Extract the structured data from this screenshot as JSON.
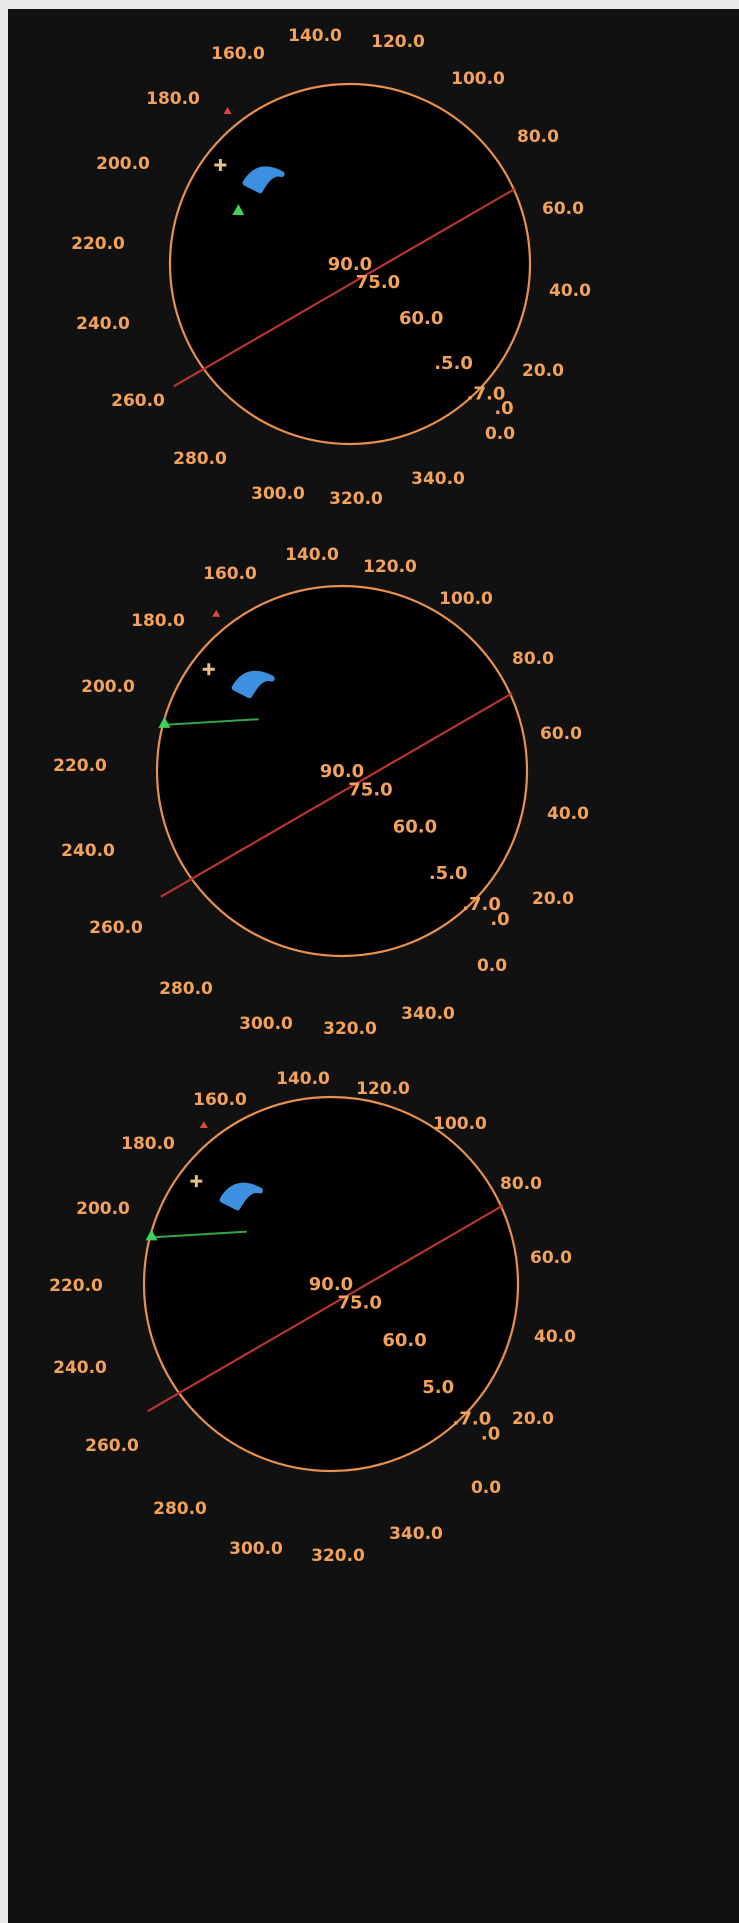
{
  "colors": {
    "background": "#111111",
    "grid": "#e8914f",
    "label": "#f2a25a",
    "sky_glow": "#d8d2cc",
    "track": "#b8352c",
    "cloud_blob": "#3d8fe0",
    "marker_green": "#3fcf5a",
    "marker_tan": "#e6c087",
    "marker_red": "#d94a3c"
  },
  "panels": [
    {
      "azimuth_labels": [
        "0.0",
        "20.0",
        "40.0",
        "60.0",
        "80.0",
        "100.0",
        "120.0",
        "140.0",
        "160.0",
        "180.0",
        "200.0",
        "220.0",
        "240.0",
        "260.0",
        "280.0",
        "300.0",
        "320.0",
        "340.0"
      ],
      "elevation_labels": [
        "90.0",
        "75.0",
        "60.0",
        ".5.0",
        ".7.0",
        ".0"
      ]
    },
    {
      "azimuth_labels": [
        "0.0",
        "20.0",
        "40.0",
        "60.0",
        "80.0",
        "100.0",
        "120.0",
        "140.0",
        "160.0",
        "180.0",
        "200.0",
        "220.0",
        "240.0",
        "260.0",
        "280.0",
        "300.0",
        "320.0",
        "340.0"
      ],
      "elevation_labels": [
        "90.0",
        "75.0",
        "60.0",
        ".5.0",
        ".7.0",
        ".0"
      ]
    },
    {
      "azimuth_labels": [
        "0.0",
        "20.0",
        "40.0",
        "60.0",
        "80.0",
        "100.0",
        "120.0",
        "140.0",
        "160.0",
        "180.0",
        "200.0",
        "220.0",
        "240.0",
        "260.0",
        "280.0",
        "300.0",
        "320.0",
        "340.0"
      ],
      "elevation_labels": [
        "90.0",
        "75.0",
        "60.0",
        "5.0",
        ".7.0",
        ".0"
      ]
    }
  ]
}
